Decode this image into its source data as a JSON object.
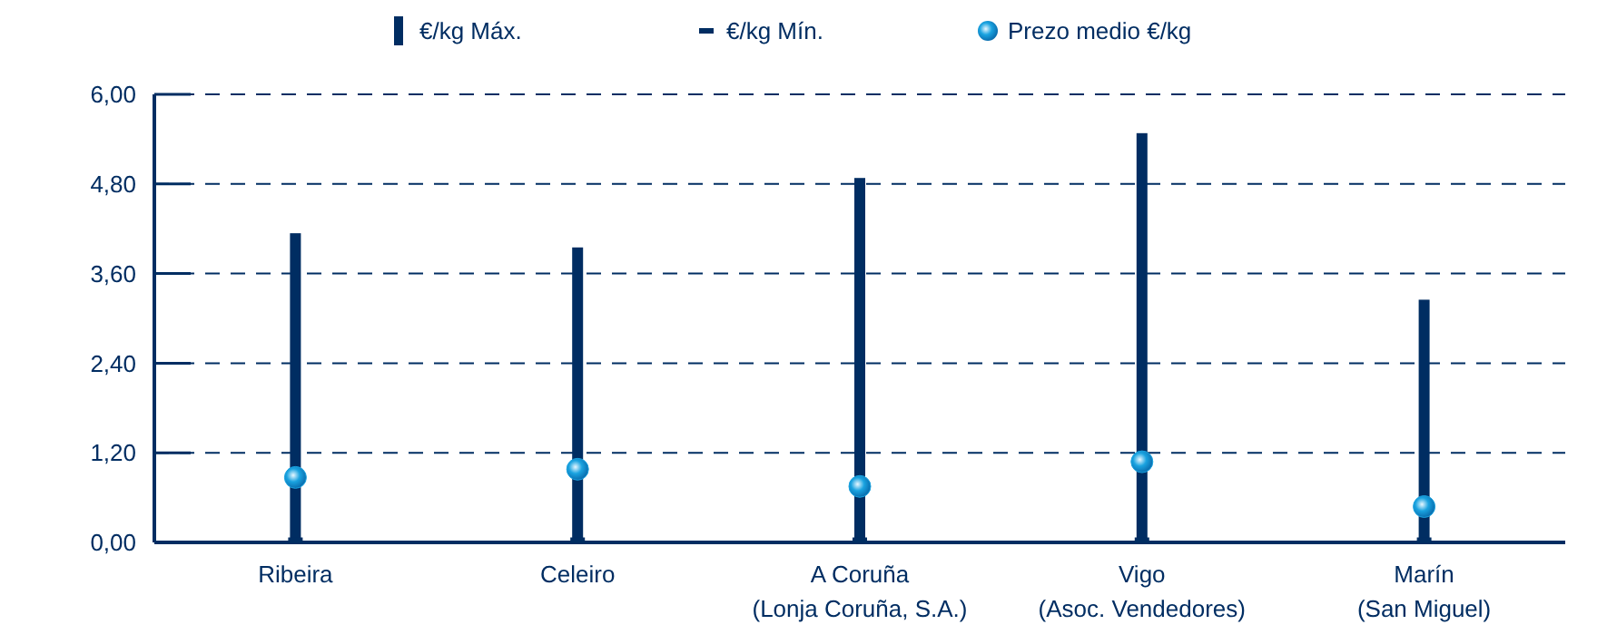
{
  "chart_data": {
    "type": "bar",
    "categories": [
      "Ribeira",
      "Celeiro",
      "A Coruña\n(Lonja Coruña, S.A.)",
      "Vigo\n(Asoc. Vendedores)",
      "Marín\n(San Miguel)"
    ],
    "series": [
      {
        "name": "€/kg Máx.",
        "color": "#002d62",
        "values": [
          4.14,
          3.95,
          4.88,
          5.48,
          3.25
        ]
      },
      {
        "name": "€/kg Mín.",
        "type": "scatter",
        "marker": "square",
        "color": "#002d62",
        "values": [
          0.03,
          0.03,
          0.03,
          0.03,
          0.03
        ]
      },
      {
        "name": "Prezo medio €/kg",
        "type": "scatter",
        "marker": "circle",
        "color": "#1aa3e0",
        "values": [
          0.87,
          0.98,
          0.75,
          1.08,
          0.48
        ]
      }
    ],
    "ylim": [
      0,
      6
    ],
    "yticks": [
      {
        "value": 0,
        "label": "0,00"
      },
      {
        "value": 1.2,
        "label": "1,20"
      },
      {
        "value": 2.4,
        "label": "2,40"
      },
      {
        "value": 3.6,
        "label": "3,60"
      },
      {
        "value": 4.8,
        "label": "4,80"
      },
      {
        "value": 6,
        "label": "6,00"
      }
    ],
    "grid": "y",
    "legend": "top"
  }
}
